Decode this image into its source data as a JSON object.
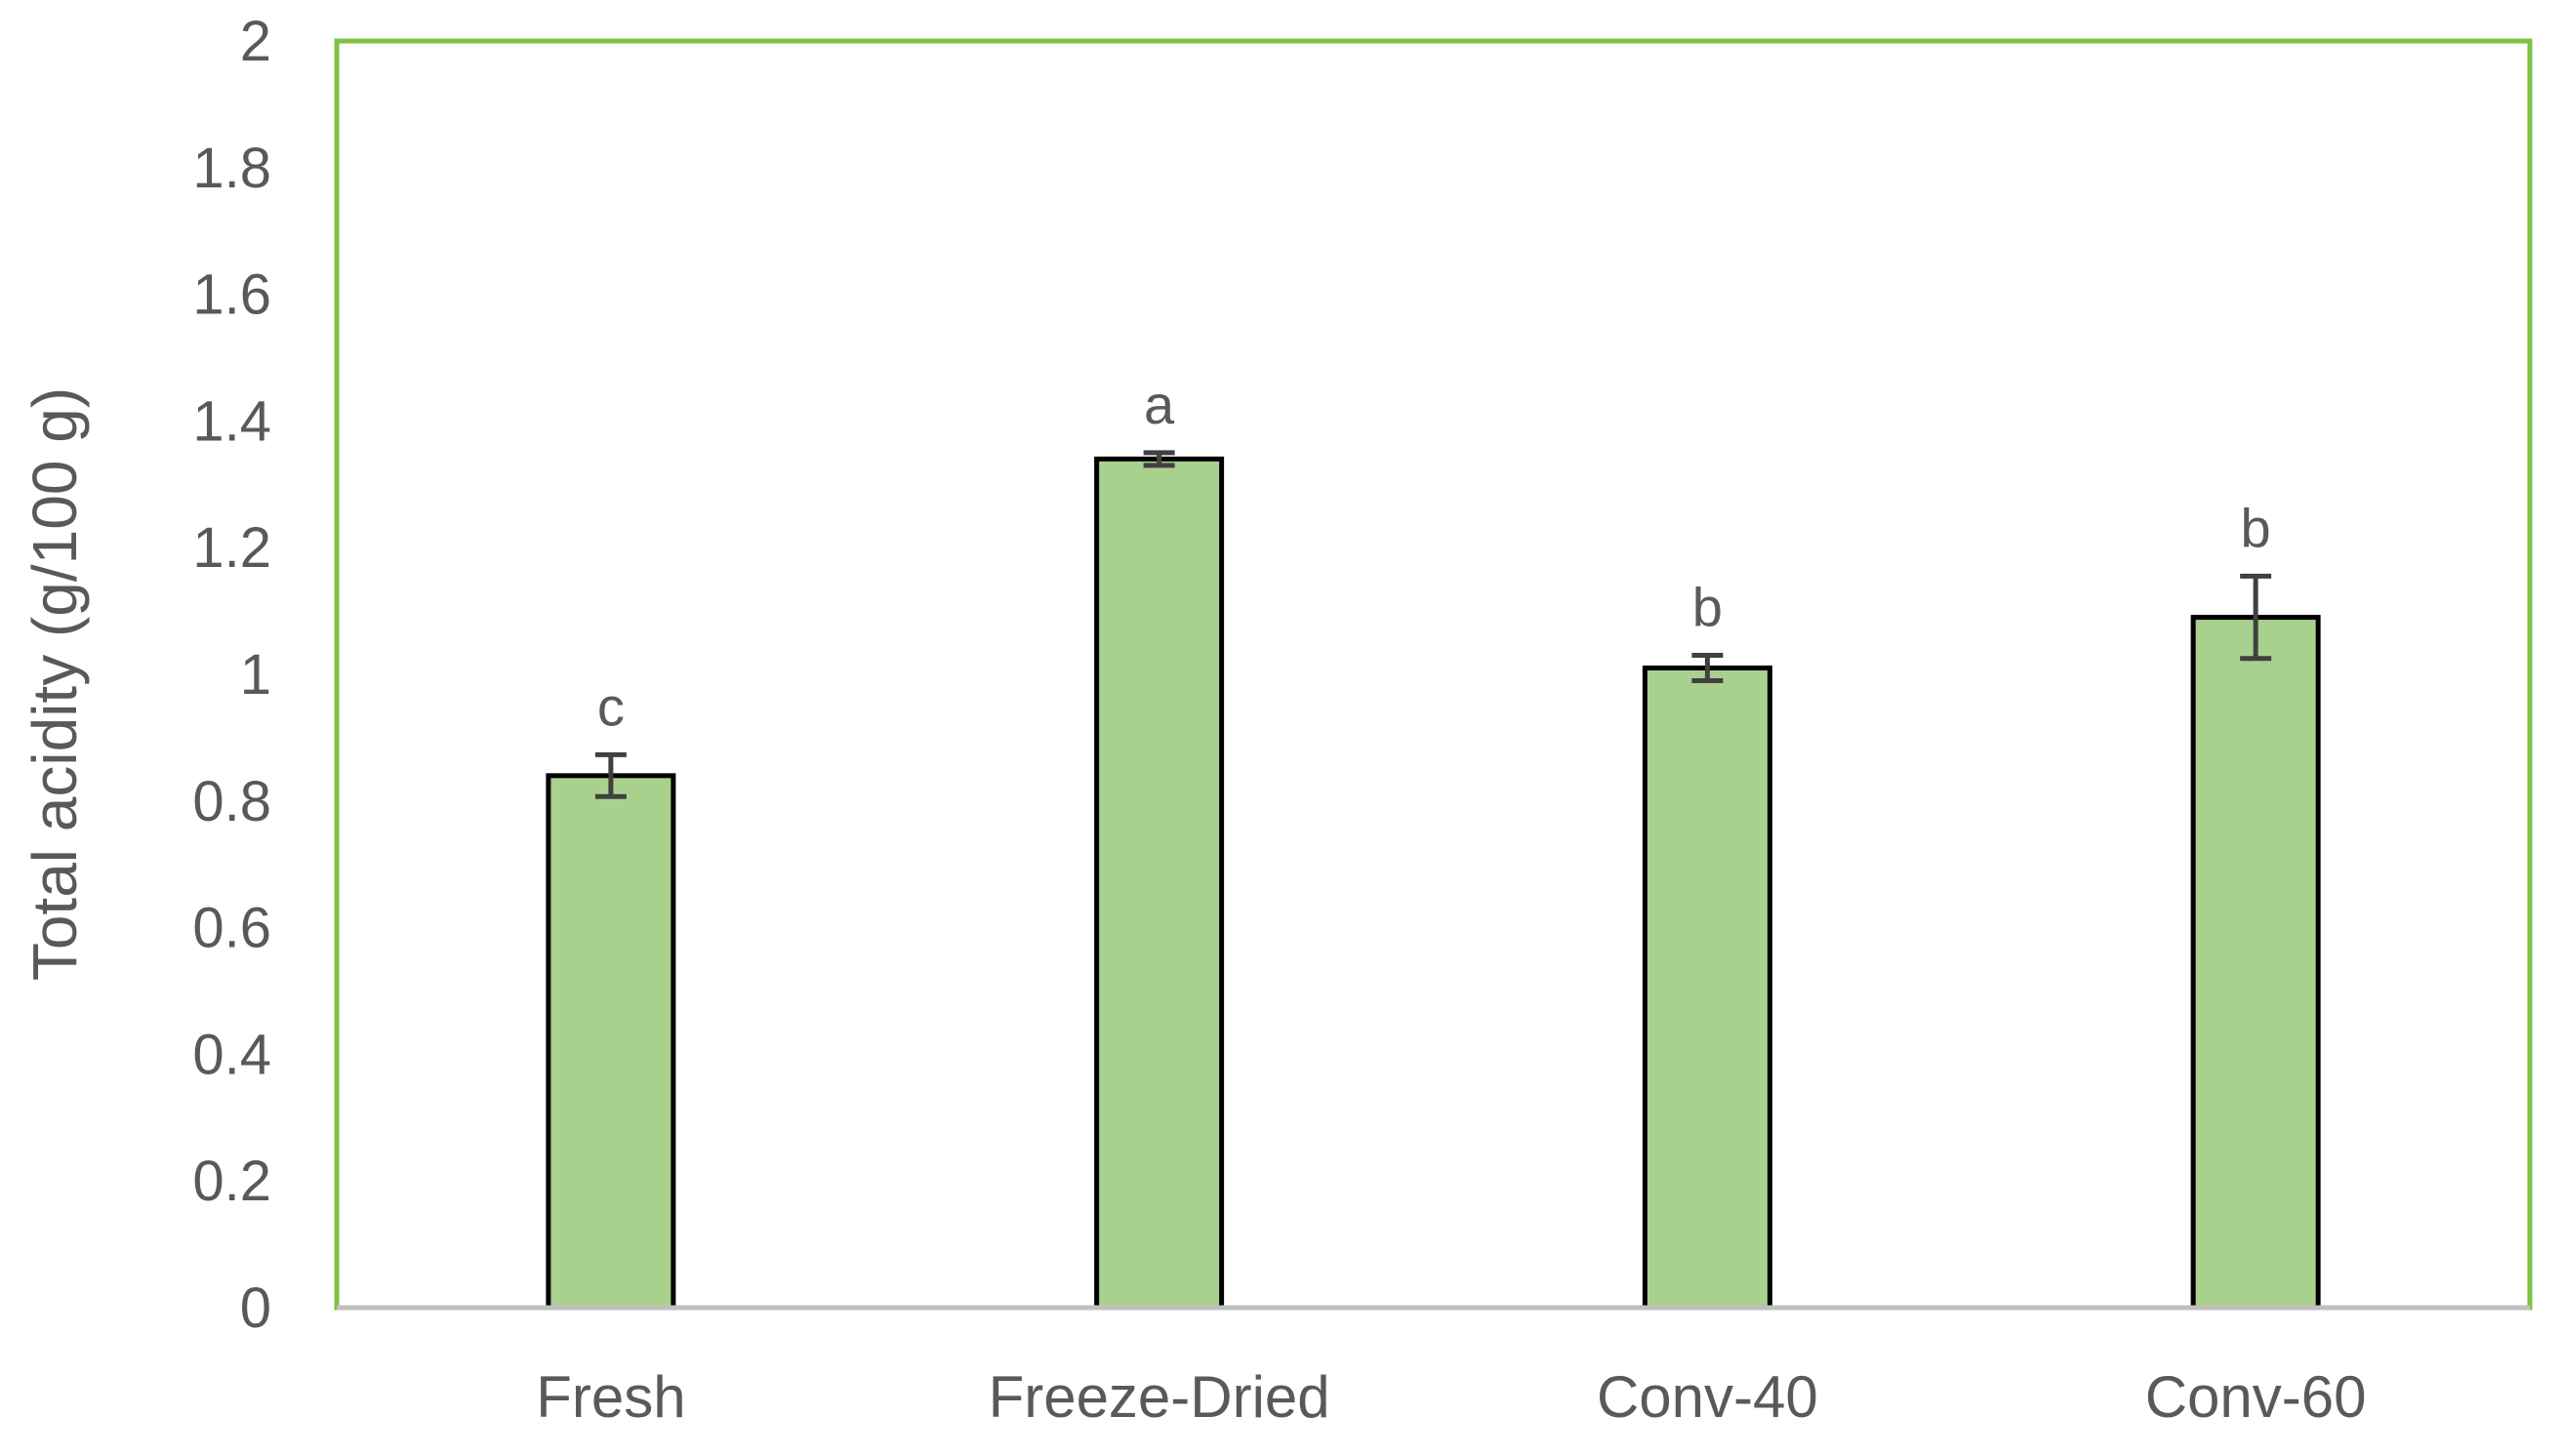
{
  "chart_data": {
    "type": "bar",
    "title": "",
    "xlabel": "",
    "ylabel": "Total acidity (g/100 g)",
    "ylim": [
      0,
      2
    ],
    "yticks": [
      "0",
      "0.2",
      "0.4",
      "0.6",
      "0.8",
      "1",
      "1.2",
      "1.4",
      "1.6",
      "1.8",
      "2"
    ],
    "categories": [
      "Fresh",
      "Freeze-Dried",
      "Conv-40",
      "Conv-60"
    ],
    "values": [
      0.84,
      1.34,
      1.01,
      1.09
    ],
    "errors": [
      0.033,
      0.01,
      0.02,
      0.065
    ],
    "significance_letters": [
      "c",
      "a",
      "b",
      "b"
    ],
    "grid": false,
    "legend": "none",
    "colors": {
      "bar_fill": "#a9d18e",
      "bar_stroke": "#000000",
      "frame": "#7dc242",
      "x_axis": "#bfbfbf",
      "error_bar": "#404040",
      "text": "#595959"
    }
  }
}
